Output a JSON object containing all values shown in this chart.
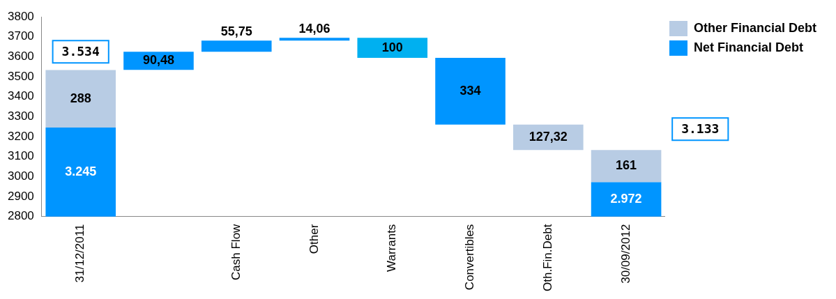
{
  "chart_data": {
    "type": "bar",
    "categories": [
      "31/12/2011",
      null,
      "Cash Flow",
      "Other",
      "Warrants",
      "Convertibles",
      "Oth.Fin.Debt",
      "30/09/2012"
    ],
    "series": [
      {
        "name": "Other Financial Debt",
        "color": "#b8cce4",
        "values": [
          288,
          null,
          null,
          null,
          null,
          null,
          127.32,
          161
        ],
        "base": [
          3245,
          null,
          null,
          null,
          null,
          null,
          3132.97,
          2972
        ],
        "value_labels": [
          "288",
          null,
          null,
          null,
          null,
          null,
          "127,32",
          "161"
        ]
      },
      {
        "name": "Net Financial Debt",
        "color": "#0095ff",
        "colors": [
          "#0095ff",
          "#0095ff",
          "#0095ff",
          "#0095ff",
          "#00b0f0",
          "#0095ff",
          null,
          "#0095ff"
        ],
        "values": [
          3245,
          90.48,
          55.75,
          14.06,
          100,
          334,
          null,
          2972
        ],
        "base": [
          0,
          3534,
          3624.48,
          3680.23,
          3594.29,
          3260.29,
          null,
          0
        ],
        "value_labels": [
          "3.245",
          "90,48",
          "55,75",
          "14,06",
          "100",
          "334",
          null,
          "2.972"
        ]
      }
    ],
    "annotations": [
      {
        "text": "3.534",
        "x": "31/12/2011",
        "y": 3534
      },
      "3.133"
    ],
    "ylim": [
      2800,
      3800
    ],
    "yticks": [
      2800,
      2900,
      3000,
      3100,
      3200,
      3300,
      3400,
      3500,
      3600,
      3700,
      3800
    ],
    "grid": false,
    "legend": "top right"
  }
}
